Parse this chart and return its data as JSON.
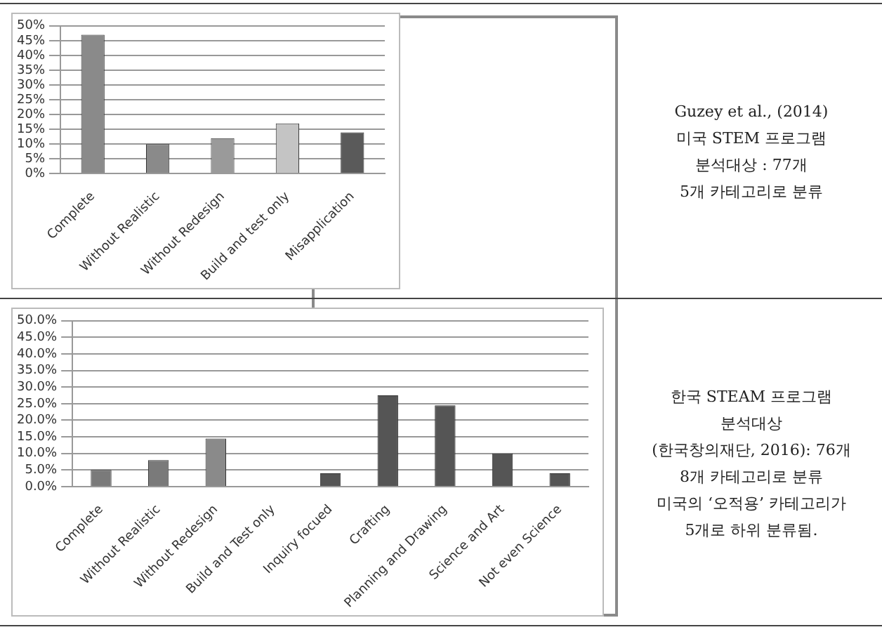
{
  "chart_data": [
    {
      "type": "bar",
      "categories": [
        "Complete",
        "Without Realistic",
        "Without Redesign",
        "Build and test only",
        "Misapplication"
      ],
      "values": [
        47,
        10,
        12,
        17,
        14
      ],
      "colors": [
        "#8a8a8a",
        "#8a8a8a",
        "#9a9a9a",
        "#c4c4c4",
        "#5a5a5a"
      ],
      "ylim": [
        0,
        50
      ],
      "yticks": [
        {
          "value": 0,
          "label": "0%"
        },
        {
          "value": 5,
          "label": "5%"
        },
        {
          "value": 10,
          "label": "10%"
        },
        {
          "value": 15,
          "label": "15%"
        },
        {
          "value": 20,
          "label": "20%"
        },
        {
          "value": 25,
          "label": "25%"
        },
        {
          "value": 30,
          "label": "30%"
        },
        {
          "value": 35,
          "label": "35%"
        },
        {
          "value": 40,
          "label": "40%"
        },
        {
          "value": 45,
          "label": "45%"
        },
        {
          "value": 50,
          "label": "50%"
        }
      ],
      "grid": "y",
      "annotations": [
        "Guzey et al., (2014)",
        "미국 STEM 프로그램",
        "분석대상 : 77개",
        "5개 카테고리로 분류"
      ]
    },
    {
      "type": "bar",
      "categories": [
        "Complete",
        "Without Realistic",
        "Without Redesign",
        "Build and Test only",
        "Inquiry focued",
        "Crafting",
        "Planning and Drawing",
        "Science and Art",
        "Not even Science"
      ],
      "values": [
        5,
        8,
        14.5,
        0,
        4,
        27.5,
        24.5,
        10,
        4
      ],
      "colors": [
        "#7a7a7a",
        "#7a7a7a",
        "#8a8a8a",
        "#8a8a8a",
        "#555555",
        "#555555",
        "#555555",
        "#555555",
        "#555555"
      ],
      "ylim": [
        0,
        50
      ],
      "yticks": [
        {
          "value": 0,
          "label": "0.0%"
        },
        {
          "value": 5,
          "label": "5.0%"
        },
        {
          "value": 10,
          "label": "10.0%"
        },
        {
          "value": 15,
          "label": "15.0%"
        },
        {
          "value": 20,
          "label": "20.0%"
        },
        {
          "value": 25,
          "label": "25.0%"
        },
        {
          "value": 30,
          "label": "30.0%"
        },
        {
          "value": 35,
          "label": "35.0%"
        },
        {
          "value": 40,
          "label": "40.0%"
        },
        {
          "value": 45,
          "label": "45.0%"
        },
        {
          "value": 50,
          "label": "50.0%"
        }
      ],
      "grid": "y",
      "annotations": [
        "한국 STEAM 프로그램",
        "분석대상",
        "(한국창의재단, 2016): 76개",
        "8개 카테고리로 분류",
        "미국의 ‘오적용’ 카테고리가",
        "5개로 하위 분류됨."
      ]
    }
  ]
}
